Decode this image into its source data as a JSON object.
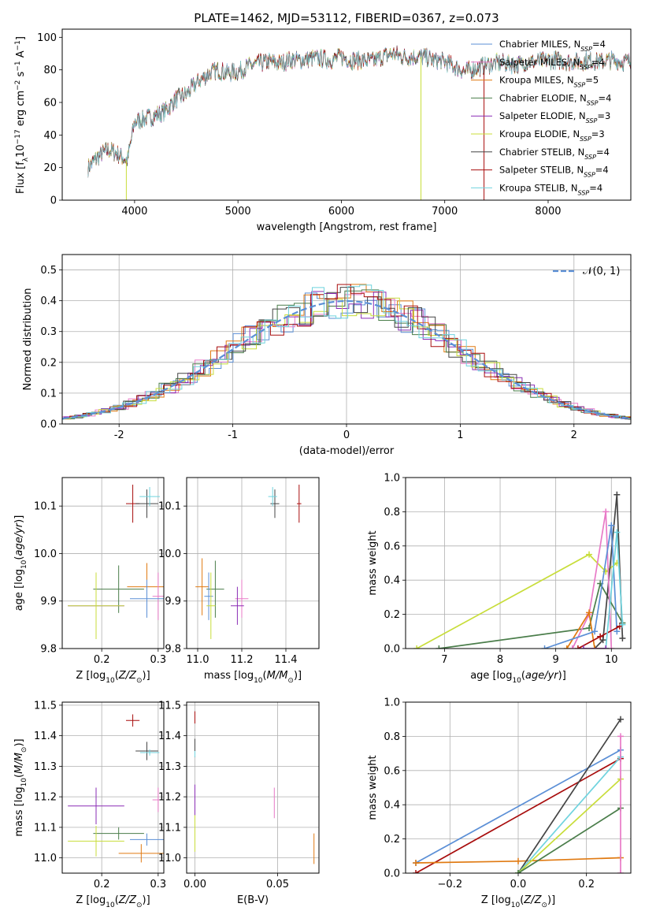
{
  "colors": {
    "Chabrier MILES": "#5b8fd6",
    "Salpeter MILES": "#e87ac7",
    "Kroupa MILES": "#e07a12",
    "Chabrier ELODIE": "#4a7d4a",
    "Salpeter ELODIE": "#8a2db5",
    "Kroupa ELODIE": "#c8dd3a",
    "Chabrier STELIB": "#444444",
    "Salpeter STELIB": "#a80d0d",
    "Kroupa STELIB": "#6fd3de",
    "normal": "#5b8fd6",
    "grid": "#b0b0b0"
  },
  "chart_data": [
    {
      "type": "line",
      "title": "PLATE=1462, MJD=53112, FIBERID=0367, z=0.073",
      "xlabel": "wavelength [Angstrom, rest frame]",
      "ylabel": "Flux [f_λ 10^-17 erg cm^-2 s^-1 A^-1]",
      "xlim": [
        3300,
        8800
      ],
      "ylim": [
        0,
        105
      ],
      "xticks": [
        4000,
        5000,
        6000,
        7000,
        8000
      ],
      "yticks": [
        0,
        20,
        40,
        60,
        80,
        100
      ],
      "legend": [
        "Chabrier MILES, N_SSP=4",
        "Salpeter MILES, N_SSP=4",
        "Kroupa MILES, N_SSP=5",
        "Chabrier ELODIE, N_SSP=4",
        "Salpeter ELODIE, N_SSP=3",
        "Kroupa ELODIE, N_SSP=3",
        "Chabrier STELIB, N_SSP=4",
        "Salpeter STELIB, N_SSP=4",
        "Kroupa STELIB, N_SSP=4"
      ],
      "legend_position": "top-right",
      "series_envelope": {
        "x": [
          3550,
          3650,
          3750,
          3850,
          3930,
          4000,
          4100,
          4200,
          4300,
          4400,
          4500,
          4600,
          4700,
          4800,
          4900,
          5000,
          5100,
          5200,
          5300,
          5400,
          5500,
          5600,
          5700,
          5800,
          5900,
          6000,
          6100,
          6200,
          6300,
          6400,
          6500,
          6600,
          6700,
          6800,
          6900,
          7000,
          7100,
          7200,
          7300,
          7400,
          7500,
          7600,
          7700,
          7800,
          7900,
          8000,
          8100,
          8200,
          8300,
          8400,
          8500,
          8600,
          8700,
          8800
        ],
        "y": [
          20,
          27,
          31,
          28,
          24,
          48,
          50,
          52,
          55,
          62,
          65,
          72,
          77,
          80,
          78,
          79,
          82,
          84,
          85,
          84,
          86,
          86,
          87,
          87,
          86,
          88,
          86,
          86,
          85,
          88,
          90,
          88,
          88,
          88,
          86,
          85,
          82,
          79,
          81,
          83,
          84,
          84,
          83,
          85,
          85,
          86,
          86,
          85,
          85,
          86,
          85,
          86,
          85,
          85
        ]
      },
      "spikes_x": [
        3920,
        6770,
        7380
      ]
    },
    {
      "type": "bar",
      "xlabel": "(data-model)/error",
      "ylabel": "Normed distribution",
      "xlim": [
        -2.5,
        2.5
      ],
      "ylim": [
        0,
        0.55
      ],
      "xticks": [
        -2,
        -1,
        0,
        1,
        2
      ],
      "yticks": [
        0.0,
        0.1,
        0.2,
        0.3,
        0.4,
        0.5
      ],
      "legend": [
        "𝒩(0, 1)"
      ],
      "legend_position": "top-right"
    },
    {
      "type": "scatter",
      "xlabel": "Z [log10(Z/Z⊙)]",
      "ylabel": "age [log10(age/yr)]",
      "xlim": [
        0.13,
        0.31
      ],
      "ylim": [
        9.8,
        10.16
      ],
      "xticks": [
        0.2,
        0.3
      ],
      "yticks": [
        9.8,
        9.9,
        10.0,
        10.1
      ],
      "points": [
        {
          "name": "Salpeter STELIB",
          "x": 0.255,
          "y": 10.105,
          "xerr": 0.012,
          "yerr": 0.04
        },
        {
          "name": "Chabrier STELIB",
          "x": 0.28,
          "y": 10.105,
          "xerr": 0.02,
          "yerr": 0.03
        },
        {
          "name": "Kroupa STELIB",
          "x": 0.285,
          "y": 10.12,
          "xerr": 0.018,
          "yerr": 0.02
        },
        {
          "name": "Chabrier ELODIE",
          "x": 0.23,
          "y": 9.925,
          "xerr": 0.045,
          "yerr": 0.05
        },
        {
          "name": "Kroupa MILES",
          "x": 0.28,
          "y": 9.93,
          "xerr": 0.035,
          "yerr": 0.05
        },
        {
          "name": "Salpeter MILES",
          "x": 0.3,
          "y": 9.91,
          "xerr": 0.01,
          "yerr": 0.05
        },
        {
          "name": "Chabrier MILES",
          "x": 0.28,
          "y": 9.905,
          "xerr": 0.03,
          "yerr": 0.04
        },
        {
          "name": "Salpeter ELODIE",
          "x": 0.19,
          "y": 9.89,
          "xerr": 0.05,
          "yerr": 0.05
        },
        {
          "name": "Kroupa ELODIE",
          "x": 0.19,
          "y": 9.89,
          "xerr": 0.05,
          "yerr": 0.07
        }
      ]
    },
    {
      "type": "scatter",
      "xlabel": "mass [log10(M/M⊙)]",
      "ylabel": "",
      "xlim": [
        10.95,
        11.55
      ],
      "ylim": [
        9.8,
        10.16
      ],
      "xticks": [
        11.0,
        11.2,
        11.4
      ],
      "yticks": [
        9.8,
        9.9,
        10.0,
        10.1
      ],
      "points": [
        {
          "name": "Salpeter STELIB",
          "x": 11.46,
          "y": 10.105,
          "xerr": 0.01,
          "yerr": 0.04
        },
        {
          "name": "Chabrier STELIB",
          "x": 11.35,
          "y": 10.105,
          "xerr": 0.02,
          "yerr": 0.03
        },
        {
          "name": "Kroupa STELIB",
          "x": 11.34,
          "y": 10.12,
          "xerr": 0.02,
          "yerr": 0.02
        },
        {
          "name": "Chabrier ELODIE",
          "x": 11.08,
          "y": 9.925,
          "xerr": 0.04,
          "yerr": 0.06
        },
        {
          "name": "Kroupa MILES",
          "x": 11.02,
          "y": 9.93,
          "xerr": 0.03,
          "yerr": 0.06
        },
        {
          "name": "Salpeter MILES",
          "x": 11.2,
          "y": 9.905,
          "xerr": 0.03,
          "yerr": 0.04
        },
        {
          "name": "Chabrier MILES",
          "x": 11.05,
          "y": 9.91,
          "xerr": 0.02,
          "yerr": 0.05
        },
        {
          "name": "Salpeter ELODIE",
          "x": 11.18,
          "y": 9.89,
          "xerr": 0.03,
          "yerr": 0.04
        },
        {
          "name": "Kroupa ELODIE",
          "x": 11.06,
          "y": 9.89,
          "xerr": 0.02,
          "yerr": 0.07
        }
      ]
    },
    {
      "type": "line",
      "xlabel": "age [log10(age/yr)]",
      "ylabel": "mass weight",
      "xlim": [
        6.3,
        10.35
      ],
      "ylim": [
        0,
        1.0
      ],
      "xticks": [
        7,
        8,
        9,
        10
      ],
      "yticks": [
        0.0,
        0.2,
        0.4,
        0.6,
        0.8,
        1.0
      ],
      "series": [
        {
          "name": "Kroupa ELODIE",
          "x": [
            6.5,
            9.6,
            9.9,
            10.1
          ],
          "y": [
            0.0,
            0.55,
            0.45,
            0.5
          ]
        },
        {
          "name": "Chabrier ELODIE",
          "x": [
            6.9,
            9.6,
            9.8,
            10.2
          ],
          "y": [
            0.0,
            0.12,
            0.38,
            0.15
          ]
        },
        {
          "name": "Chabrier STELIB",
          "x": [
            9.7,
            9.85,
            10.1,
            10.2
          ],
          "y": [
            0.0,
            0.05,
            0.9,
            0.06
          ]
        },
        {
          "name": "Salpeter MILES",
          "x": [
            9.3,
            9.6,
            9.9,
            10.0
          ],
          "y": [
            0.0,
            0.2,
            0.8,
            0.0
          ]
        },
        {
          "name": "Kroupa MILES",
          "x": [
            9.2,
            9.6,
            9.7,
            9.9
          ],
          "y": [
            0.0,
            0.21,
            0.0,
            0.0
          ]
        },
        {
          "name": "Chabrier MILES",
          "x": [
            8.8,
            9.7,
            10.0,
            10.1
          ],
          "y": [
            0.0,
            0.1,
            0.72,
            0.1
          ]
        },
        {
          "name": "Salpeter STELIB",
          "x": [
            9.4,
            9.8,
            10.15
          ],
          "y": [
            0.0,
            0.07,
            0.13
          ]
        },
        {
          "name": "Kroupa STELIB",
          "x": [
            9.9,
            10.1,
            10.2
          ],
          "y": [
            0.0,
            0.68,
            0.14
          ]
        },
        {
          "name": "Salpeter ELODIE",
          "x": [
            9.5,
            9.9
          ],
          "y": [
            0.0,
            0.0
          ]
        }
      ]
    },
    {
      "type": "scatter",
      "xlabel": "Z [log10(Z/Z⊙)]",
      "ylabel": "mass [log10(M/M⊙)]",
      "xlim": [
        0.13,
        0.31
      ],
      "ylim": [
        10.95,
        11.51
      ],
      "xticks": [
        0.2,
        0.3
      ],
      "yticks": [
        11.0,
        11.1,
        11.2,
        11.3,
        11.4,
        11.5
      ],
      "points": [
        {
          "name": "Salpeter STELIB",
          "x": 0.255,
          "y": 11.45,
          "xerr": 0.012,
          "yerr": 0.02
        },
        {
          "name": "Chabrier STELIB",
          "x": 0.28,
          "y": 11.35,
          "xerr": 0.02,
          "yerr": 0.03
        },
        {
          "name": "Kroupa STELIB",
          "x": 0.285,
          "y": 11.345,
          "xerr": 0.017,
          "yerr": 0.01
        },
        {
          "name": "Salpeter MILES",
          "x": 0.3,
          "y": 11.19,
          "xerr": 0.01,
          "yerr": 0.04
        },
        {
          "name": "Salpeter ELODIE",
          "x": 0.19,
          "y": 11.17,
          "xerr": 0.05,
          "yerr": 0.06
        },
        {
          "name": "Chabrier ELODIE",
          "x": 0.23,
          "y": 11.08,
          "xerr": 0.045,
          "yerr": 0.02
        },
        {
          "name": "Chabrier MILES",
          "x": 0.28,
          "y": 11.06,
          "xerr": 0.03,
          "yerr": 0.02
        },
        {
          "name": "Kroupa ELODIE",
          "x": 0.19,
          "y": 11.055,
          "xerr": 0.05,
          "yerr": 0.05
        },
        {
          "name": "Kroupa MILES",
          "x": 0.27,
          "y": 11.015,
          "xerr": 0.04,
          "yerr": 0.03
        }
      ]
    },
    {
      "type": "scatter",
      "xlabel": "E(B-V)",
      "ylabel": "",
      "xlim": [
        -0.005,
        0.075
      ],
      "ylim": [
        10.95,
        11.51
      ],
      "xticks": [
        0.0,
        0.05
      ],
      "yticks": [
        11.0,
        11.1,
        11.2,
        11.3,
        11.4,
        11.5
      ],
      "points": [
        {
          "name": "Salpeter STELIB",
          "x": 0.0,
          "y": 11.46,
          "yerr": 0.02
        },
        {
          "name": "Chabrier STELIB",
          "x": 0.0,
          "y": 11.36,
          "yerr": 0.03
        },
        {
          "name": "Kroupa STELIB",
          "x": 0.0,
          "y": 11.34,
          "yerr": 0.01
        },
        {
          "name": "Salpeter ELODIE",
          "x": 0.0,
          "y": 11.18,
          "yerr": 0.06
        },
        {
          "name": "Kroupa ELODIE",
          "x": 0.0,
          "y": 11.08,
          "yerr": 0.06
        },
        {
          "name": "Salpeter MILES",
          "x": 0.048,
          "y": 11.18,
          "yerr": 0.05
        },
        {
          "name": "Kroupa MILES",
          "x": 0.072,
          "y": 11.03,
          "yerr": 0.05
        }
      ]
    },
    {
      "type": "line",
      "xlabel": "Z [log10(Z/Z⊙)]",
      "ylabel": "mass weight",
      "xlim": [
        -0.33,
        0.33
      ],
      "ylim": [
        0,
        1.0
      ],
      "xticks": [
        -0.2,
        0.0,
        0.2
      ],
      "yticks": [
        0.0,
        0.2,
        0.4,
        0.6,
        0.8,
        1.0
      ],
      "series": [
        {
          "name": "Chabrier MILES",
          "x": [
            -0.3,
            0.3
          ],
          "y": [
            0.06,
            0.72
          ]
        },
        {
          "name": "Salpeter STELIB",
          "x": [
            -0.3,
            0.3
          ],
          "y": [
            0.0,
            0.67
          ]
        },
        {
          "name": "Kroupa MILES",
          "x": [
            -0.3,
            0.0,
            0.3
          ],
          "y": [
            0.06,
            0.07,
            0.09
          ]
        },
        {
          "name": "Chabrier STELIB",
          "x": [
            0.0,
            0.3
          ],
          "y": [
            0.0,
            0.9
          ]
        },
        {
          "name": "Kroupa STELIB",
          "x": [
            0.0,
            0.3
          ],
          "y": [
            0.0,
            0.68
          ]
        },
        {
          "name": "Kroupa ELODIE",
          "x": [
            0.0,
            0.3
          ],
          "y": [
            0.0,
            0.55
          ]
        },
        {
          "name": "Chabrier ELODIE",
          "x": [
            0.0,
            0.3
          ],
          "y": [
            0.0,
            0.38
          ]
        },
        {
          "name": "Salpeter MILES",
          "x": [
            0.3,
            0.3
          ],
          "y": [
            0.0,
            0.8
          ]
        }
      ]
    }
  ]
}
